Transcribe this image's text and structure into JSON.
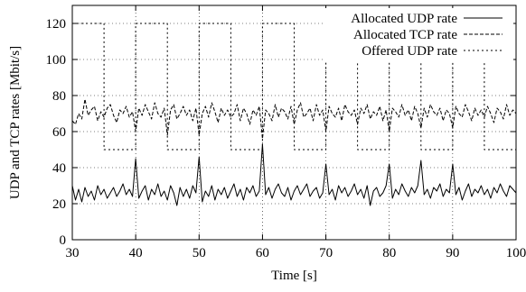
{
  "chart_data": {
    "type": "line",
    "xlabel": "Time [s]",
    "ylabel": "UDP and TCP rates [Mbit/s]",
    "xlim": [
      30,
      100
    ],
    "ylim": [
      0,
      130
    ],
    "xticks": [
      30,
      40,
      50,
      60,
      70,
      80,
      90,
      100
    ],
    "yticks": [
      0,
      20,
      40,
      60,
      80,
      100,
      120
    ],
    "grid": "dotted",
    "legend_position": "top-right",
    "series": [
      {
        "name": "Allocated UDP rate",
        "style": "solid",
        "x": [
          30.0,
          30.5,
          31.0,
          31.5,
          32.0,
          32.5,
          33.0,
          33.5,
          34.0,
          34.5,
          35.0,
          35.5,
          36.0,
          36.5,
          37.0,
          37.5,
          38.0,
          38.5,
          39.0,
          39.5,
          40.0,
          40.5,
          41.0,
          41.5,
          42.0,
          42.5,
          43.0,
          43.5,
          44.0,
          44.5,
          45.0,
          45.5,
          46.0,
          46.5,
          47.0,
          47.5,
          48.0,
          48.5,
          49.0,
          49.5,
          50.0,
          50.5,
          51.0,
          51.5,
          52.0,
          52.5,
          53.0,
          53.5,
          54.0,
          54.5,
          55.0,
          55.5,
          56.0,
          56.5,
          57.0,
          57.5,
          58.0,
          58.5,
          59.0,
          59.5,
          60.0,
          60.5,
          61.0,
          61.5,
          62.0,
          62.5,
          63.0,
          63.5,
          64.0,
          64.5,
          65.0,
          65.5,
          66.0,
          66.5,
          67.0,
          67.5,
          68.0,
          68.5,
          69.0,
          69.5,
          70.0,
          70.5,
          71.0,
          71.5,
          72.0,
          72.5,
          73.0,
          73.5,
          74.0,
          74.5,
          75.0,
          75.5,
          76.0,
          76.5,
          77.0,
          77.5,
          78.0,
          78.5,
          79.0,
          79.5,
          80.0,
          80.5,
          81.0,
          81.5,
          82.0,
          82.5,
          83.0,
          83.5,
          84.0,
          84.5,
          85.0,
          85.5,
          86.0,
          86.5,
          87.0,
          87.5,
          88.0,
          88.5,
          89.0,
          89.5,
          90.0,
          90.5,
          91.0,
          91.5,
          92.0,
          92.5,
          93.0,
          93.5,
          94.0,
          94.5,
          95.0,
          95.5,
          96.0,
          96.5,
          97.0,
          97.5,
          98.0,
          98.5,
          99.0,
          99.5,
          100.0
        ],
        "y": [
          30,
          22,
          28,
          21,
          29,
          24,
          27,
          22,
          30,
          25,
          28,
          23,
          26,
          29,
          24,
          27,
          31,
          25,
          28,
          24,
          45,
          23,
          27,
          30,
          22,
          28,
          25,
          31,
          24,
          27,
          22,
          30,
          26,
          19,
          29,
          24,
          28,
          23,
          30,
          26,
          46,
          21,
          27,
          24,
          30,
          22,
          28,
          25,
          29,
          23,
          27,
          31,
          24,
          28,
          22,
          29,
          26,
          30,
          24,
          27,
          53,
          25,
          29,
          23,
          28,
          31,
          26,
          24,
          29,
          22,
          27,
          30,
          25,
          28,
          31,
          24,
          27,
          29,
          23,
          26,
          42,
          25,
          28,
          22,
          30,
          26,
          29,
          24,
          27,
          31,
          25,
          28,
          23,
          30,
          19,
          27,
          29,
          24,
          26,
          30,
          42,
          23,
          28,
          25,
          31,
          27,
          24,
          29,
          26,
          30,
          44,
          25,
          28,
          23,
          29,
          27,
          31,
          24,
          28,
          26,
          42,
          25,
          29,
          22,
          27,
          31,
          24,
          28,
          26,
          30,
          25,
          28,
          23,
          29,
          26,
          31,
          27,
          24,
          30,
          28,
          26
        ]
      },
      {
        "name": "Allocated TCP rate",
        "style": "dashed",
        "x": [
          30.0,
          30.5,
          31.0,
          31.5,
          32.0,
          32.5,
          33.0,
          33.5,
          34.0,
          34.5,
          35.0,
          35.5,
          36.0,
          36.5,
          37.0,
          37.5,
          38.0,
          38.5,
          39.0,
          39.5,
          40.0,
          40.5,
          41.0,
          41.5,
          42.0,
          42.5,
          43.0,
          43.5,
          44.0,
          44.5,
          45.0,
          45.5,
          46.0,
          46.5,
          47.0,
          47.5,
          48.0,
          48.5,
          49.0,
          49.5,
          50.0,
          50.5,
          51.0,
          51.5,
          52.0,
          52.5,
          53.0,
          53.5,
          54.0,
          54.5,
          55.0,
          55.5,
          56.0,
          56.5,
          57.0,
          57.5,
          58.0,
          58.5,
          59.0,
          59.5,
          60.0,
          60.5,
          61.0,
          61.5,
          62.0,
          62.5,
          63.0,
          63.5,
          64.0,
          64.5,
          65.0,
          65.5,
          66.0,
          66.5,
          67.0,
          67.5,
          68.0,
          68.5,
          69.0,
          69.5,
          70.0,
          70.5,
          71.0,
          71.5,
          72.0,
          72.5,
          73.0,
          73.5,
          74.0,
          74.5,
          75.0,
          75.5,
          76.0,
          76.5,
          77.0,
          77.5,
          78.0,
          78.5,
          79.0,
          79.5,
          80.0,
          80.5,
          81.0,
          81.5,
          82.0,
          82.5,
          83.0,
          83.5,
          84.0,
          84.5,
          85.0,
          85.5,
          86.0,
          86.5,
          87.0,
          87.5,
          88.0,
          88.5,
          89.0,
          89.5,
          90.0,
          90.5,
          91.0,
          91.5,
          92.0,
          92.5,
          93.0,
          93.5,
          94.0,
          94.5,
          95.0,
          95.5,
          96.0,
          96.5,
          97.0,
          97.5,
          98.0,
          98.5,
          99.0,
          99.5,
          100.0
        ],
        "y": [
          66,
          64,
          70,
          67,
          78,
          69,
          72,
          74,
          66,
          71,
          68,
          73,
          75,
          69,
          65,
          72,
          70,
          74,
          68,
          71,
          60,
          73,
          69,
          75,
          71,
          67,
          76,
          70,
          68,
          73,
          58,
          72,
          75,
          67,
          70,
          74,
          69,
          72,
          66,
          73,
          58,
          70,
          74,
          68,
          76,
          71,
          65,
          73,
          69,
          72,
          68,
          70,
          75,
          66,
          73,
          70,
          64,
          72,
          69,
          74,
          56,
          72,
          70,
          66,
          75,
          68,
          73,
          71,
          67,
          74,
          64,
          72,
          76,
          68,
          70,
          73,
          66,
          75,
          69,
          72,
          60,
          74,
          70,
          68,
          73,
          66,
          75,
          71,
          69,
          72,
          64,
          73,
          70,
          75,
          67,
          71,
          69,
          74,
          66,
          72,
          60,
          73,
          71,
          68,
          75,
          69,
          72,
          66,
          74,
          70,
          62,
          73,
          68,
          75,
          71,
          69,
          73,
          66,
          72,
          70,
          62,
          74,
          70,
          68,
          75,
          71,
          66,
          73,
          69,
          72,
          68,
          74,
          70,
          65,
          73,
          71,
          67,
          75,
          69,
          72,
          70
        ]
      },
      {
        "name": "Offered UDP rate",
        "style": "dotted",
        "x": [
          30,
          35,
          35,
          40,
          40,
          45,
          45,
          50,
          50,
          55,
          55,
          60,
          60,
          65,
          65,
          70,
          70,
          75,
          75,
          80,
          80,
          85,
          85,
          90,
          90,
          95,
          95,
          100
        ],
        "y": [
          120,
          120,
          50,
          50,
          120,
          120,
          50,
          50,
          120,
          120,
          50,
          50,
          120,
          120,
          50,
          50,
          120,
          120,
          50,
          50,
          120,
          120,
          50,
          50,
          120,
          120,
          50,
          50
        ]
      }
    ]
  }
}
